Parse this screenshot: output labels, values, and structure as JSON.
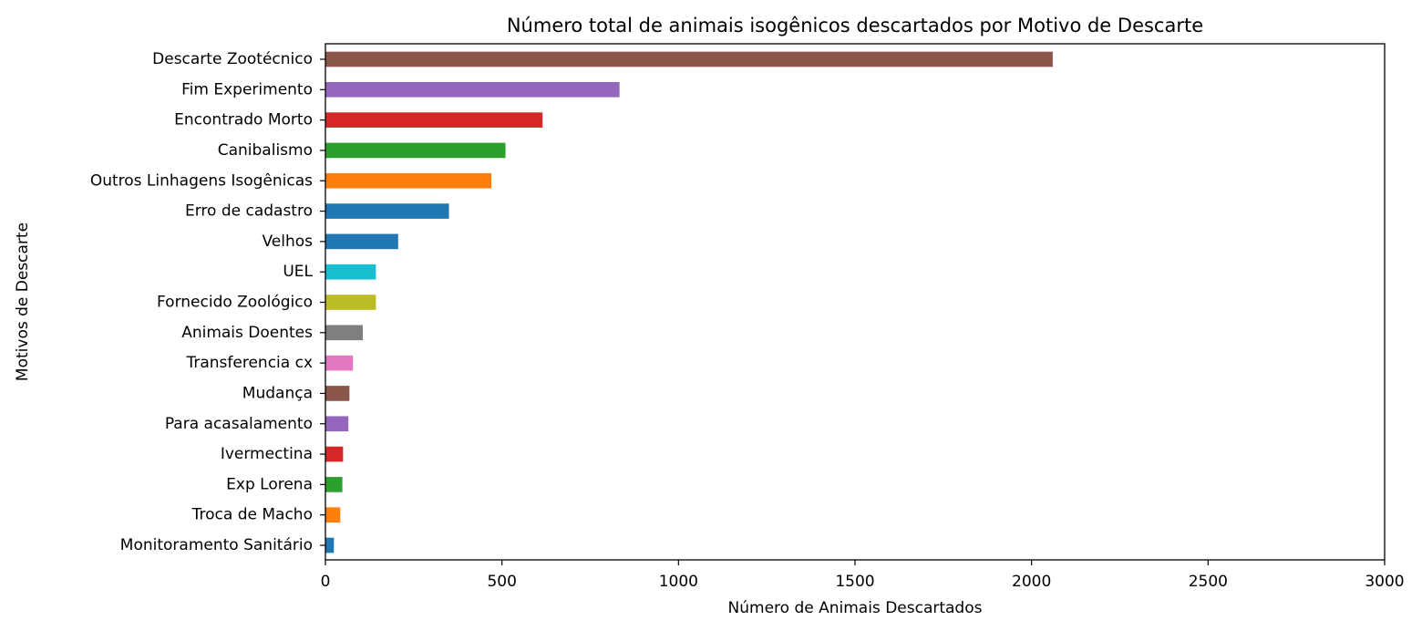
{
  "chart_data": {
    "type": "bar",
    "orientation": "horizontal",
    "title": "Número total de animais isogênicos descartados por Motivo de Descarte",
    "xlabel": "Número de Animais Descartados",
    "ylabel": "Motivos de Descarte",
    "xlim": [
      0,
      3000
    ],
    "xticks": [
      "0",
      "500",
      "1000",
      "1500",
      "2000",
      "2500",
      "3000"
    ],
    "grid": false,
    "categories": [
      "Descarte Zootécnico",
      "Fim Experimento",
      "Encontrado Morto",
      "Canibalismo",
      "Outros Linhagens Isogênicas",
      "Erro de cadastro",
      "Velhos",
      "UEL",
      "Fornecido Zoológico",
      "Animais Doentes",
      "Transferencia cx",
      "Mudança",
      "Para acasalamento",
      "Ivermectina",
      "Exp Lorena",
      "Troca de Macho",
      "Monitoramento Sanitário"
    ],
    "values": [
      2060,
      833,
      615,
      510,
      470,
      350,
      206,
      143,
      143,
      106,
      78,
      68,
      65,
      50,
      48,
      42,
      24
    ],
    "colors": [
      "#8c564b",
      "#9467bd",
      "#d62728",
      "#2ca02c",
      "#ff7f0e",
      "#1f77b4",
      "#1f77b4",
      "#17becf",
      "#bcbd22",
      "#7f7f7f",
      "#e377c2",
      "#8c564b",
      "#9467bd",
      "#d62728",
      "#2ca02c",
      "#ff7f0e",
      "#1f77b4"
    ]
  }
}
